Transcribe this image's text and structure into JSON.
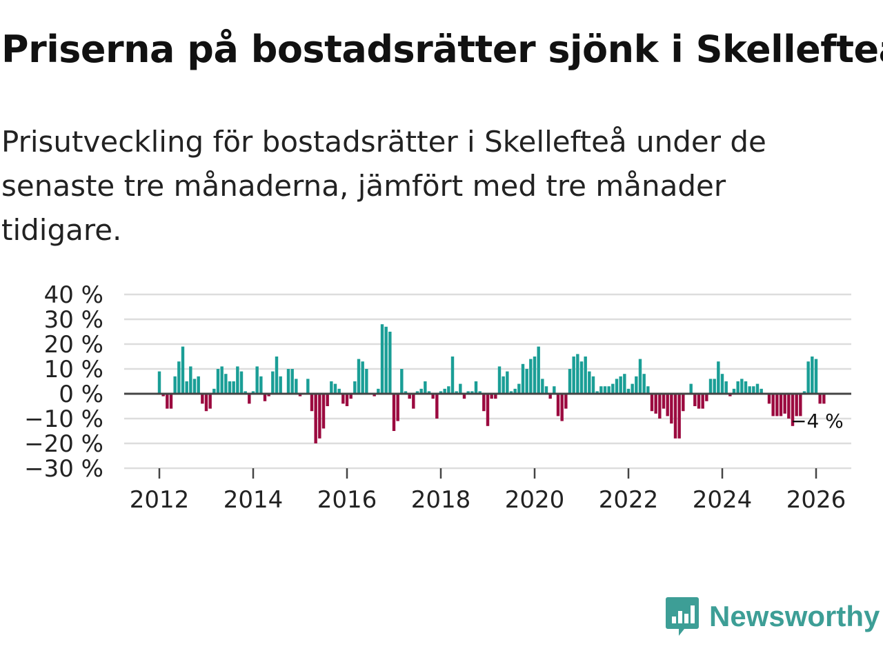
{
  "title": "Priserna på bostadsrätter sjönk i Skellefteå",
  "subtitle": "Prisutveckling för bostadsrätter i Skellefteå under de senaste tre månaderna, jämfört med tre månader tidigare.",
  "brand": {
    "name": "Newsworthy",
    "icon": "newsworthy-logo-icon"
  },
  "colors": {
    "positive": "#1a9e96",
    "negative": "#9b0a3f",
    "grid": "#dddddd",
    "zero": "#444444",
    "brand": "#3d9e96"
  },
  "chart_data": {
    "type": "bar",
    "title": "Prisutveckling för bostadsrätter i Skellefteå",
    "ylabel": "",
    "xlabel": "",
    "ylim": [
      -30,
      40
    ],
    "xlim": [
      2011.25,
      2026.75
    ],
    "y_ticks": [
      40,
      30,
      20,
      10,
      0,
      -10,
      -20,
      -30
    ],
    "y_tick_labels": [
      "40 %",
      "30 %",
      "20 %",
      "10 %",
      "0 %",
      "−10 %",
      "−20 %",
      "−30 %"
    ],
    "x_ticks": [
      2012,
      2014,
      2016,
      2018,
      2020,
      2022,
      2024,
      2026
    ],
    "x_tick_labels": [
      "2012",
      "2014",
      "2016",
      "2018",
      "2020",
      "2022",
      "2024",
      "2026"
    ],
    "start_year": 2012,
    "months_per_bar": 1,
    "end_label": "−4 %",
    "values": [
      9,
      -1,
      -6,
      -6,
      7,
      13,
      19,
      5,
      11,
      6,
      7,
      -4,
      -7,
      -6,
      2,
      10,
      11,
      8,
      5,
      5,
      11,
      9,
      1,
      -4,
      1,
      11,
      7,
      -3,
      -1,
      9,
      15,
      7,
      0,
      10,
      10,
      6,
      -1,
      0,
      6,
      -7,
      -20,
      -18,
      -14,
      -5,
      5,
      4,
      2,
      -4,
      -5,
      -2,
      5,
      14,
      13,
      10,
      0,
      -1,
      2,
      28,
      27,
      25,
      -15,
      -11,
      10,
      1,
      -2,
      -6,
      1,
      2,
      5,
      1,
      -2,
      -10,
      1,
      2,
      3,
      15,
      1,
      4,
      -2,
      1,
      1,
      5,
      1,
      -7,
      -13,
      -2,
      -2,
      11,
      7,
      9,
      1,
      2,
      4,
      12,
      10,
      14,
      15,
      19,
      6,
      3,
      -2,
      3,
      -9,
      -11,
      -6,
      10,
      15,
      16,
      13,
      15,
      9,
      7,
      1,
      3,
      3,
      3,
      4,
      6,
      7,
      8,
      2,
      4,
      7,
      14,
      8,
      3,
      -7,
      -8,
      -10,
      -6,
      -9,
      -12,
      -18,
      -18,
      -7,
      0,
      4,
      -5,
      -6,
      -6,
      -3,
      6,
      6,
      13,
      8,
      5,
      -1,
      2,
      5,
      6,
      5,
      3,
      3,
      4,
      2,
      0,
      -4,
      -9,
      -9,
      -9,
      -8,
      -10,
      -13,
      -9,
      -9,
      1,
      13,
      15,
      14,
      -4,
      -4
    ]
  }
}
